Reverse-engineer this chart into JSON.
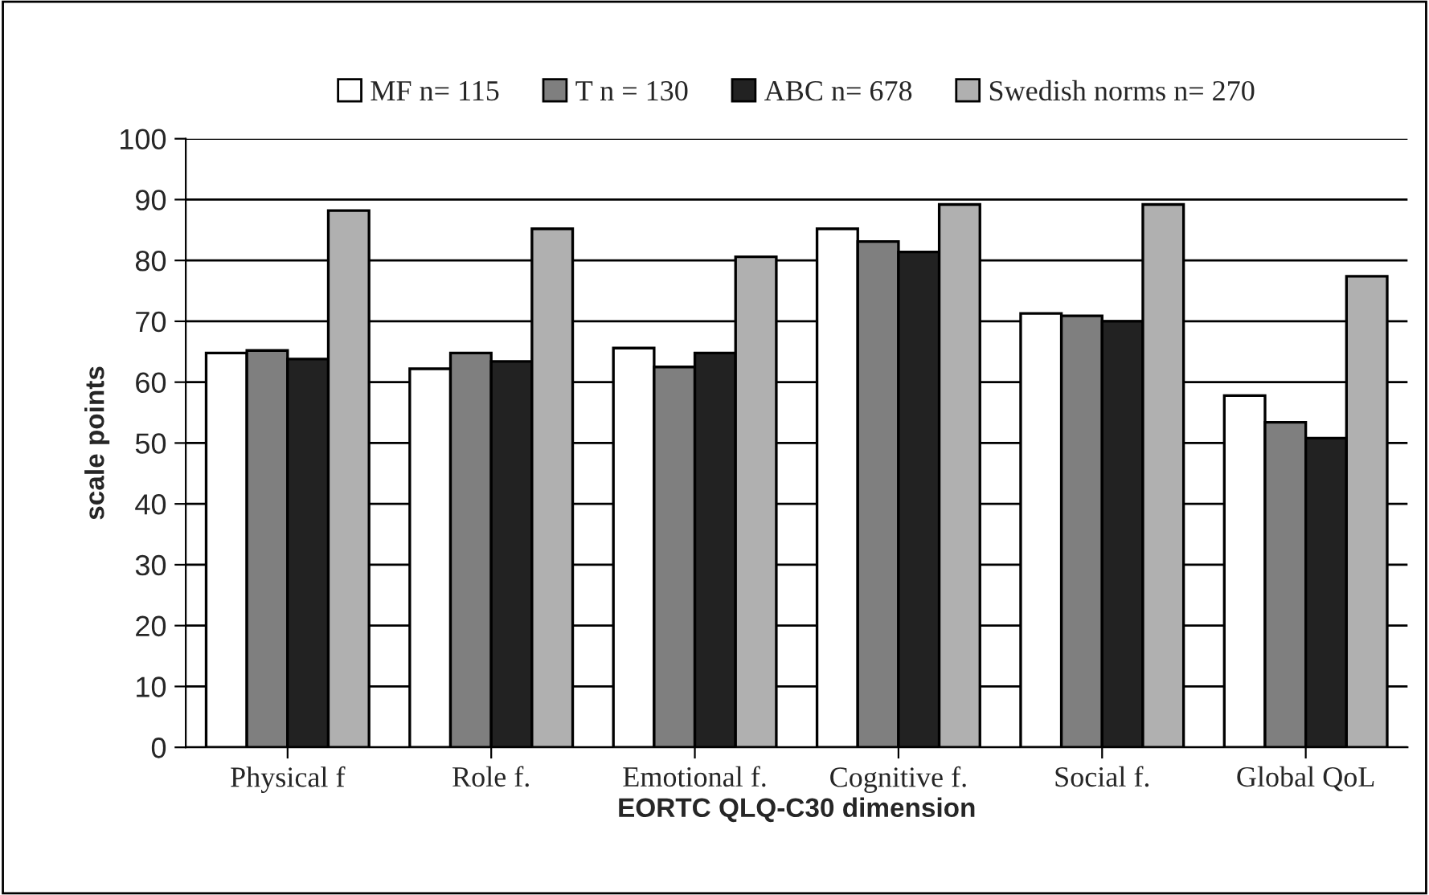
{
  "chart_data": {
    "type": "bar",
    "xlabel": "EORTC QLQ-C30 dimension",
    "ylabel": "scale points",
    "categories": [
      "Physical f",
      "Role f.",
      "Emotional f.",
      "Cognitive f.",
      "Social f.",
      "Global QoL"
    ],
    "series": [
      {
        "name": "MF n= 115",
        "color": "#ffffff",
        "values": [
          64.8,
          62.2,
          65.6,
          85.2,
          71.3,
          57.8
        ]
      },
      {
        "name": "T n = 130",
        "color": "#7f7f7f",
        "values": [
          65.2,
          64.8,
          62.5,
          83.1,
          70.9,
          53.4
        ]
      },
      {
        "name": "ABC n= 678",
        "color": "#222222",
        "values": [
          63.8,
          63.4,
          64.8,
          81.4,
          70.0,
          50.8
        ]
      },
      {
        "name": "Swedish norms n= 270",
        "color": "#b0b0b0",
        "values": [
          88.2,
          85.2,
          80.6,
          89.2,
          89.2,
          77.4
        ]
      }
    ],
    "ylim": [
      0,
      100
    ],
    "yticks": [
      0,
      10,
      20,
      30,
      40,
      50,
      60,
      70,
      80,
      90,
      100
    ],
    "grid": "y",
    "legend": "top"
  }
}
